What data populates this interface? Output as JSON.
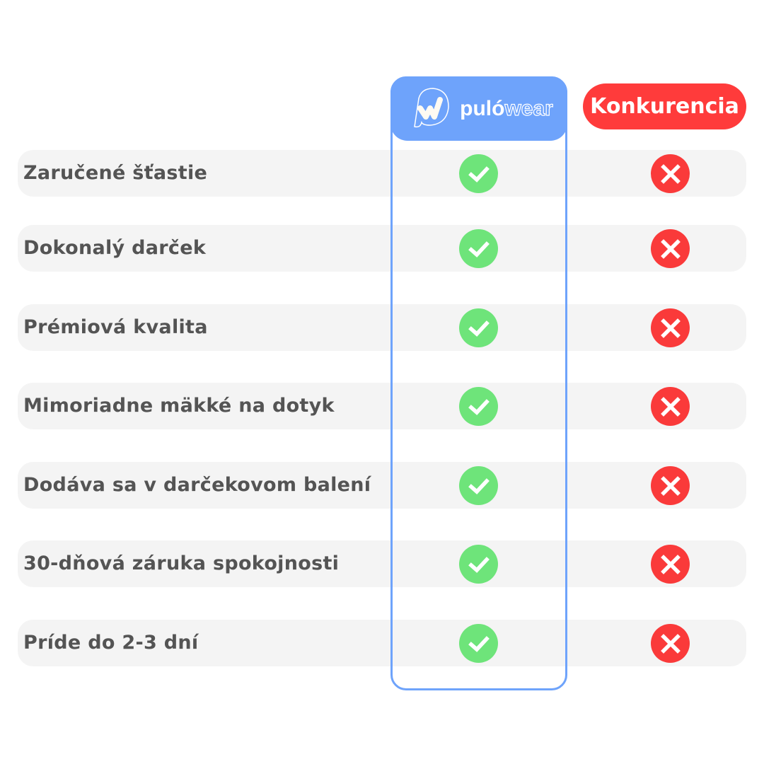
{
  "header": {
    "brand_part1": "puló",
    "brand_part2": "wear",
    "competitor_label": "Konkurencia"
  },
  "colors": {
    "brand": "#6ea3fb",
    "competitor": "#ff3b3b",
    "check": "#6ee47a",
    "cross": "#fa3a3a"
  },
  "rows": [
    {
      "label": "Zaručené šťastie",
      "brand": "check-icon",
      "competitor": "cross-icon"
    },
    {
      "label": "Dokonalý darček",
      "brand": "check-icon",
      "competitor": "cross-icon"
    },
    {
      "label": "Prémiová kvalita",
      "brand": "check-icon",
      "competitor": "cross-icon"
    },
    {
      "label": "Mimoriadne mäkké na dotyk",
      "brand": "check-icon",
      "competitor": "cross-icon"
    },
    {
      "label": "Dodáva sa v darčekovom balení",
      "brand": "check-icon",
      "competitor": "cross-icon"
    },
    {
      "label": "30-dňová záruka spokojnosti",
      "brand": "check-icon",
      "competitor": "cross-icon"
    },
    {
      "label": "Príde do 2-3 dní",
      "brand": "check-icon",
      "competitor": "cross-icon"
    }
  ]
}
